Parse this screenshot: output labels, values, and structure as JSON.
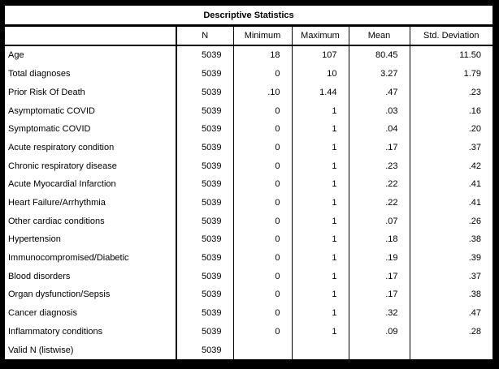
{
  "colors": {
    "frame": "#000000",
    "table_background": "#ffffff",
    "border": "#000000",
    "text": "#000000"
  },
  "chart_data": {
    "type": "table",
    "title": "Descriptive Statistics",
    "columns": [
      "",
      "N",
      "Minimum",
      "Maximum",
      "Mean",
      "Std. Deviation"
    ],
    "rows": [
      {
        "label": "Age",
        "n": "5039",
        "min": "18",
        "max": "107",
        "mean": "80.45",
        "std": "11.50"
      },
      {
        "label": "Total diagnoses",
        "n": "5039",
        "min": "0",
        "max": "10",
        "mean": "3.27",
        "std": "1.79"
      },
      {
        "label": "Prior Risk Of Death",
        "n": "5039",
        "min": ".10",
        "max": "1.44",
        "mean": ".47",
        "std": ".23"
      },
      {
        "label": "Asymptomatic COVID",
        "n": "5039",
        "min": "0",
        "max": "1",
        "mean": ".03",
        "std": ".16"
      },
      {
        "label": "Symptomatic COVID",
        "n": "5039",
        "min": "0",
        "max": "1",
        "mean": ".04",
        "std": ".20"
      },
      {
        "label": "Acute respiratory condition",
        "n": "5039",
        "min": "0",
        "max": "1",
        "mean": ".17",
        "std": ".37"
      },
      {
        "label": "Chronic respiratory disease",
        "n": "5039",
        "min": "0",
        "max": "1",
        "mean": ".23",
        "std": ".42"
      },
      {
        "label": "Acute Myocardial Infarction",
        "n": "5039",
        "min": "0",
        "max": "1",
        "mean": ".22",
        "std": ".41"
      },
      {
        "label": "Heart Failure/Arrhythmia",
        "n": "5039",
        "min": "0",
        "max": "1",
        "mean": ".22",
        "std": ".41"
      },
      {
        "label": "Other cardiac conditions",
        "n": "5039",
        "min": "0",
        "max": "1",
        "mean": ".07",
        "std": ".26"
      },
      {
        "label": "Hypertension",
        "n": "5039",
        "min": "0",
        "max": "1",
        "mean": ".18",
        "std": ".38"
      },
      {
        "label": "Immunocompromised/Diabetic",
        "n": "5039",
        "min": "0",
        "max": "1",
        "mean": ".19",
        "std": ".39"
      },
      {
        "label": "Blood disorders",
        "n": "5039",
        "min": "0",
        "max": "1",
        "mean": ".17",
        "std": ".37"
      },
      {
        "label": "Organ dysfunction/Sepsis",
        "n": "5039",
        "min": "0",
        "max": "1",
        "mean": ".17",
        "std": ".38"
      },
      {
        "label": "Cancer diagnosis",
        "n": "5039",
        "min": "0",
        "max": "1",
        "mean": ".32",
        "std": ".47"
      },
      {
        "label": "Inflammatory conditions",
        "n": "5039",
        "min": "0",
        "max": "1",
        "mean": ".09",
        "std": ".28"
      },
      {
        "label": "Valid N (listwise)",
        "n": "5039",
        "min": "",
        "max": "",
        "mean": "",
        "std": ""
      }
    ]
  }
}
